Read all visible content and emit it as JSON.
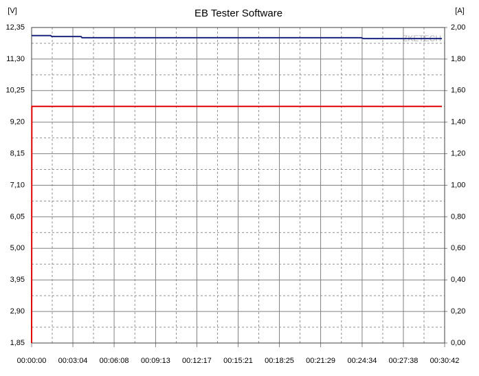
{
  "chart_data": {
    "type": "line",
    "title": "EB Tester Software",
    "y_unit": "[V]",
    "y2_unit": "[A]",
    "watermark": "ZKETECH",
    "xlim": [
      0,
      1842
    ],
    "xticks": [
      {
        "value": 0,
        "label": "00:00:00"
      },
      {
        "value": 184,
        "label": "00:03:04"
      },
      {
        "value": 368,
        "label": "00:06:08"
      },
      {
        "value": 553,
        "label": "00:09:13"
      },
      {
        "value": 737,
        "label": "00:12:17"
      },
      {
        "value": 921,
        "label": "00:15:21"
      },
      {
        "value": 1105,
        "label": "00:18:25"
      },
      {
        "value": 1289,
        "label": "00:21:29"
      },
      {
        "value": 1474,
        "label": "00:24:34"
      },
      {
        "value": 1658,
        "label": "00:27:38"
      },
      {
        "value": 1842,
        "label": "00:30:42"
      }
    ],
    "ylim": [
      1.85,
      12.35
    ],
    "yticks": [
      {
        "value": 1.85,
        "label": "1,85"
      },
      {
        "value": 2.9,
        "label": "2,90"
      },
      {
        "value": 3.95,
        "label": "3,95"
      },
      {
        "value": 5.0,
        "label": "5,00"
      },
      {
        "value": 6.05,
        "label": "6,05"
      },
      {
        "value": 7.1,
        "label": "7,10"
      },
      {
        "value": 8.15,
        "label": "8,15"
      },
      {
        "value": 9.2,
        "label": "9,20"
      },
      {
        "value": 10.25,
        "label": "10,25"
      },
      {
        "value": 11.3,
        "label": "11,30"
      },
      {
        "value": 12.35,
        "label": "12,35"
      }
    ],
    "y2lim": [
      0,
      2
    ],
    "y2ticks": [
      {
        "value": 0,
        "label": "0,00"
      },
      {
        "value": 0.2,
        "label": "0,20"
      },
      {
        "value": 0.4,
        "label": "0,40"
      },
      {
        "value": 0.6,
        "label": "0,60"
      },
      {
        "value": 0.8,
        "label": "0,80"
      },
      {
        "value": 1.0,
        "label": "1,00"
      },
      {
        "value": 1.2,
        "label": "1,20"
      },
      {
        "value": 1.4,
        "label": "1,40"
      },
      {
        "value": 1.6,
        "label": "1,60"
      },
      {
        "value": 1.8,
        "label": "1,80"
      },
      {
        "value": 2.0,
        "label": "2,00"
      }
    ],
    "grid": true,
    "series": [
      {
        "color": "#1a237e",
        "x": [
          0,
          85,
          90,
          220,
          225,
          1470,
          1480,
          1600,
          1610,
          1830
        ],
        "values": [
          12.08,
          12.08,
          12.05,
          12.05,
          12.01,
          12.01,
          11.98,
          11.98,
          11.98,
          11.98
        ]
      },
      {
        "color": "#e00000",
        "axis": "y2",
        "x": [
          0,
          1,
          1830
        ],
        "values": [
          0,
          1.5,
          1.5
        ]
      }
    ]
  }
}
